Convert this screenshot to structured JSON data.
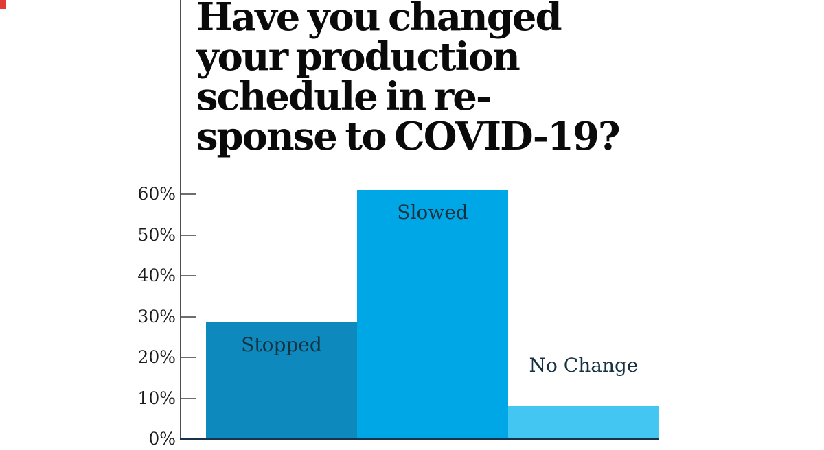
{
  "page": {
    "background": "#ffffff"
  },
  "corner_mark": {
    "color": "#e23a34"
  },
  "title": {
    "lines": [
      "Have you changed",
      "your production",
      "schedule in re-",
      "sponse to COVID-19?"
    ],
    "color": "#0a0a0a"
  },
  "chart_data": {
    "type": "bar",
    "title": "Have you changed your production schedule in response to COVID-19?",
    "categories": [
      "Stopped",
      "Slowed",
      "No Change"
    ],
    "values": [
      28.5,
      61,
      8
    ],
    "unit": "%",
    "xlabel": "",
    "ylabel": "",
    "ylim": [
      0,
      60
    ],
    "yticks": [
      {
        "value": 0,
        "label": "0%"
      },
      {
        "value": 10,
        "label": "10%"
      },
      {
        "value": 20,
        "label": "20%"
      },
      {
        "value": 30,
        "label": "30%"
      },
      {
        "value": 40,
        "label": "40%"
      },
      {
        "value": 50,
        "label": "50%"
      },
      {
        "value": 60,
        "label": "60%"
      }
    ],
    "grid": false,
    "legend": "none",
    "bar_colors": [
      "#0e89bd",
      "#00a7e6",
      "#44c6f2"
    ],
    "bar_label_placement": [
      "inside-top",
      "inside-top",
      "above"
    ],
    "axis_color": "#4d4d4d",
    "baseline_color": "#17344c",
    "tick_color": "#6e6e6e",
    "bar_label_color": "#16313f"
  }
}
